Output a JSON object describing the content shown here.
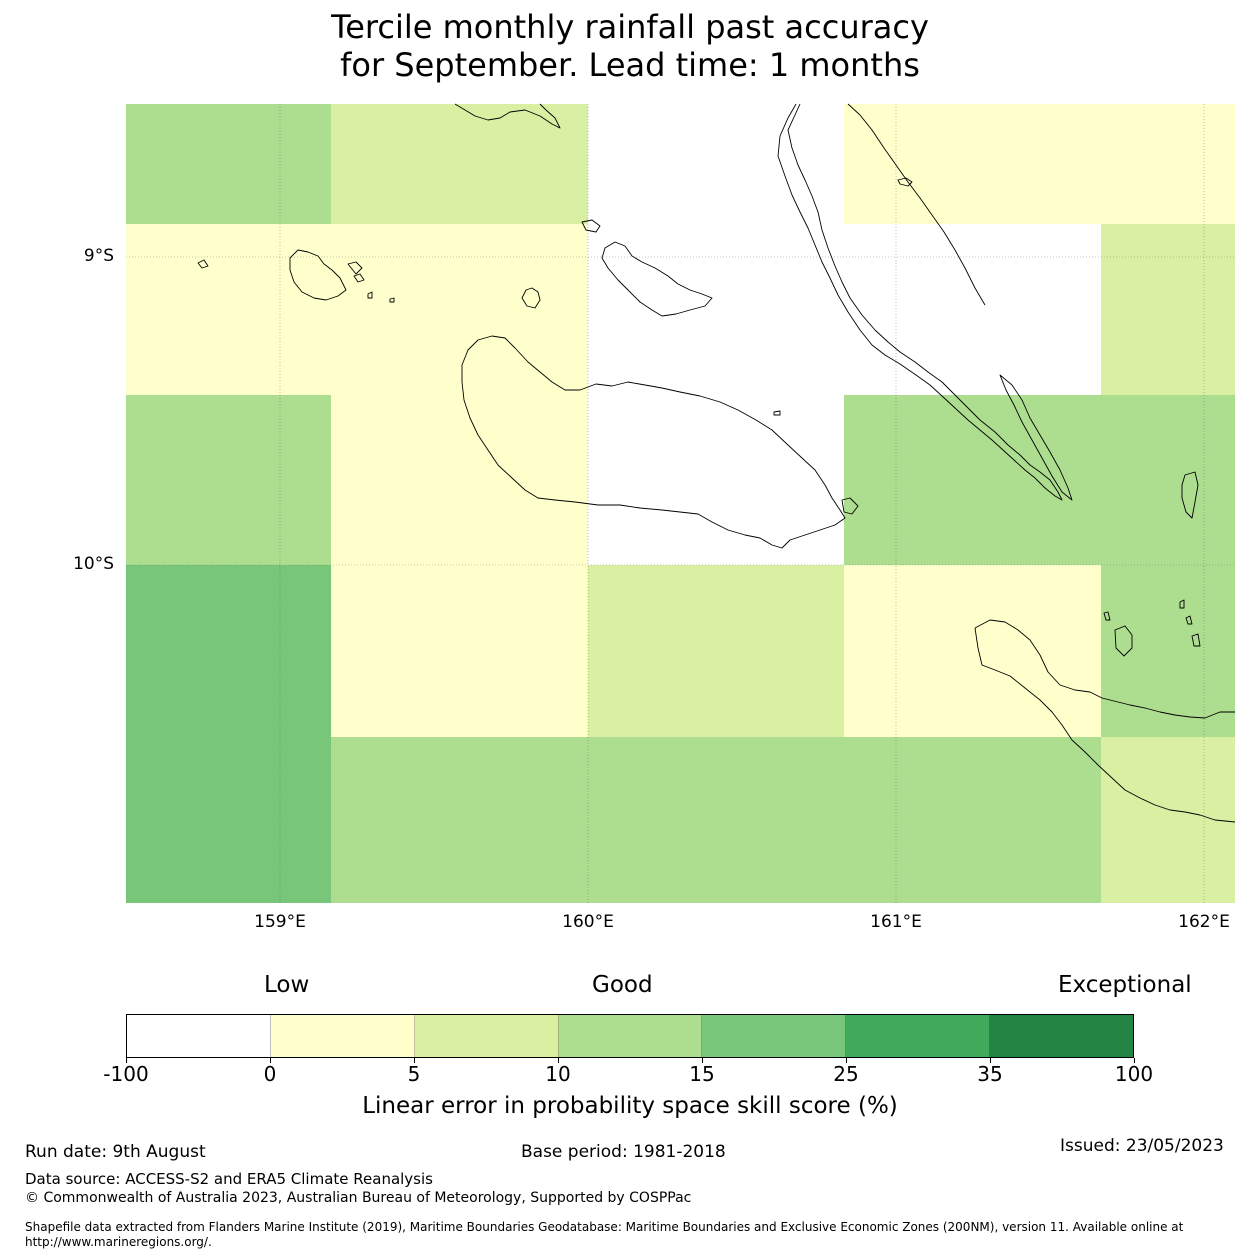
{
  "title": {
    "line1": "Tercile monthly rainfall past accuracy",
    "line2": "for September. Lead time: 1 months"
  },
  "map": {
    "lat_labels": [
      "9°S",
      "10°S"
    ],
    "lon_labels": [
      "159°E",
      "160°E",
      "161°E",
      "162°E"
    ],
    "cells": [
      {
        "value_range": "10 to 15",
        "color": "#addd8e"
      },
      {
        "value_range": "5 to 10",
        "color": "#d9f0a3"
      },
      {
        "value_range": "-100 to 0",
        "color": "#ffffff"
      },
      {
        "value_range": "0 to 5",
        "color": "#ffffcc"
      },
      {
        "value_range": "0 to 5",
        "color": "#ffffcc"
      },
      {
        "value_range": "0 to 5",
        "color": "#ffffcc"
      },
      {
        "value_range": "-100 to 0",
        "color": "#ffffff"
      },
      {
        "value_range": "-100 to 0",
        "color": "#ffffff"
      },
      {
        "value_range": "5 to 10",
        "color": "#d9f0a3"
      },
      {
        "value_range": "10 to 15",
        "color": "#addd8e"
      },
      {
        "value_range": "0 to 5",
        "color": "#ffffcc"
      },
      {
        "value_range": "-100 to 0",
        "color": "#ffffff"
      },
      {
        "value_range": "10 to 15",
        "color": "#addd8e"
      },
      {
        "value_range": "15 to 25",
        "color": "#78c679"
      },
      {
        "value_range": "0 to 5",
        "color": "#ffffcc"
      },
      {
        "value_range": "5 to 10",
        "color": "#d9f0a3"
      },
      {
        "value_range": "0 to 5",
        "color": "#ffffcc"
      },
      {
        "value_range": "10 to 15",
        "color": "#addd8e"
      },
      {
        "value_range": "10 to 15",
        "color": "#addd8e"
      },
      {
        "value_range": "5 to 10",
        "color": "#d9f0a3"
      }
    ]
  },
  "colorbar": {
    "categories": [
      "Low",
      "Good",
      "Exceptional"
    ],
    "ticks": [
      "-100",
      "0",
      "5",
      "10",
      "15",
      "25",
      "35",
      "100"
    ],
    "colors": [
      "#ffffff",
      "#ffffcc",
      "#d9f0a3",
      "#addd8e",
      "#78c679",
      "#41ab5d",
      "#238443"
    ],
    "label": "Linear error in probability space skill score (%)"
  },
  "footer": {
    "run_date": "Run date: 9th August",
    "base_period": "Base period: 1981-2018",
    "issued": "Issued: 23/05/2023",
    "data_source": "Data source: ACCESS-S2 and ERA5 Climate Reanalysis",
    "copyright": "© Commonwealth of Australia 2023, Australian Bureau of Meteorology, Supported by COSPPac",
    "shapefile_line1": "Shapefile data extracted from Flanders Marine Institute (2019), Maritime Boundaries Geodatabase: Maritime Boundaries and Exclusive Economic Zones (200NM), version 11. Available online at",
    "shapefile_line2": "http://www.marineregions.org/."
  }
}
